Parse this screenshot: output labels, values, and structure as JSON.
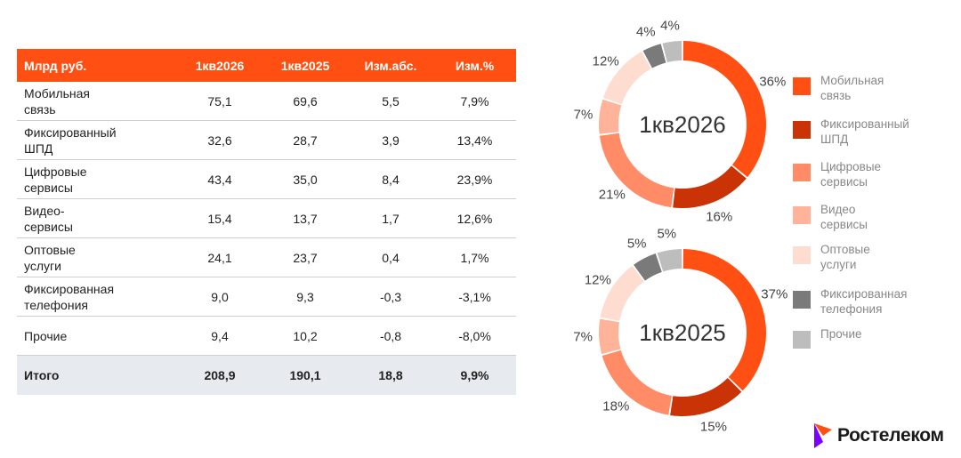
{
  "colors": {
    "header_bg": "#ff4f12",
    "total_bg": "#e7ebef",
    "segments": [
      "#ff4f12",
      "#c93305",
      "#ff8c66",
      "#ffb399",
      "#ffdcd0",
      "#7a7a7a",
      "#bdbdbd"
    ]
  },
  "table": {
    "headers": [
      "Млрд руб.",
      "1кв2026",
      "1кв2025",
      "Изм.абс.",
      "Изм.%"
    ],
    "rows": [
      {
        "name_l1": "Мобильная",
        "name_l2": "связь",
        "q2026": "75,1",
        "q2025": "69,6",
        "abs": "5,5",
        "pct": "7,9%"
      },
      {
        "name_l1": "Фиксированный",
        "name_l2": "ШПД",
        "q2026": "32,6",
        "q2025": "28,7",
        "abs": "3,9",
        "pct": "13,4%"
      },
      {
        "name_l1": "Цифровые",
        "name_l2": "сервисы",
        "q2026": "43,4",
        "q2025": "35,0",
        "abs": "8,4",
        "pct": "23,9%"
      },
      {
        "name_l1": "Видео-",
        "name_l2": "сервисы",
        "q2026": "15,4",
        "q2025": "13,7",
        "abs": "1,7",
        "pct": "12,6%"
      },
      {
        "name_l1": "Оптовые",
        "name_l2": "услуги",
        "q2026": "24,1",
        "q2025": "23,7",
        "abs": "0,4",
        "pct": "1,7%"
      },
      {
        "name_l1": "Фиксированная",
        "name_l2": "телефония",
        "q2026": "9,0",
        "q2025": "9,3",
        "abs": "-0,3",
        "pct": "-3,1%"
      },
      {
        "name_l1": "Прочие",
        "name_l2": "",
        "q2026": "9,4",
        "q2025": "10,2",
        "abs": "-0,8",
        "pct": "-8,0%"
      }
    ],
    "total": {
      "name": "Итого",
      "q2026": "208,9",
      "q2025": "190,1",
      "abs": "18,8",
      "pct": "9,9%"
    }
  },
  "legend": [
    {
      "l1": "Мобильная",
      "l2": "связь"
    },
    {
      "l1": "Фиксированный",
      "l2": "ШПД"
    },
    {
      "l1": "Цифровые",
      "l2": "сервисы"
    },
    {
      "l1": "Видео",
      "l2": "сервисы"
    },
    {
      "l1": "Оптовые",
      "l2": "услуги"
    },
    {
      "l1": "Фиксированная",
      "l2": "телефония"
    },
    {
      "l1": "Прочие",
      "l2": ""
    }
  ],
  "chart_data": [
    {
      "type": "pie",
      "title": "1кв2026",
      "categories": [
        "Мобильная связь",
        "Фиксированный ШПД",
        "Цифровые сервисы",
        "Видео сервисы",
        "Оптовые услуги",
        "Фиксированная телефония",
        "Прочие"
      ],
      "values": [
        36,
        16,
        21,
        7,
        12,
        4,
        4
      ],
      "labels": [
        "36%",
        "16%",
        "21%",
        "7%",
        "12%",
        "4%",
        "4%"
      ]
    },
    {
      "type": "pie",
      "title": "1кв2025",
      "categories": [
        "Мобильная связь",
        "Фиксированный ШПД",
        "Цифровые сервисы",
        "Видео сервисы",
        "Оптовые услуги",
        "Фиксированная телефония",
        "Прочие"
      ],
      "values": [
        37,
        15,
        18,
        7,
        12,
        5,
        5
      ],
      "labels": [
        "37%",
        "15%",
        "18%",
        "7%",
        "12%",
        "5%",
        "5%"
      ]
    }
  ],
  "logo": {
    "text": "Ростелеком"
  }
}
